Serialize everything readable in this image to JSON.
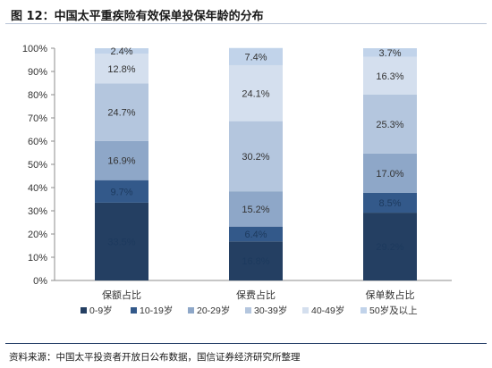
{
  "title": "图 12：中国太平重疾险有效保单投保年龄的分布",
  "source": "资料来源：中国太平投资者开放日公布数据，国信证券经济研究所整理",
  "chart_data": {
    "type": "bar",
    "stacked": true,
    "categories": [
      "保额占比",
      "保费占比",
      "保单数占比"
    ],
    "y_ticks": [
      "0%",
      "10%",
      "20%",
      "30%",
      "40%",
      "50%",
      "60%",
      "70%",
      "80%",
      "90%",
      "100%"
    ],
    "ylim": [
      0,
      100
    ],
    "grid": false,
    "legend_position": "bottom",
    "series": [
      {
        "name": "0-9岁",
        "color": "#243f62",
        "values": [
          33.5,
          16.8,
          29.2
        ],
        "labels": [
          "33.5%",
          "16.8%",
          "29.2%"
        ]
      },
      {
        "name": "10-19岁",
        "color": "#33598a",
        "values": [
          9.7,
          6.4,
          8.5
        ],
        "labels": [
          "9.7%",
          "6.4%",
          "8.5%"
        ]
      },
      {
        "name": "20-29岁",
        "color": "#8ea7c8",
        "values": [
          16.9,
          15.2,
          17.0
        ],
        "labels": [
          "16.9%",
          "15.2%",
          "17.0%"
        ]
      },
      {
        "name": "30-39岁",
        "color": "#b4c6de",
        "values": [
          24.7,
          30.2,
          25.3
        ],
        "labels": [
          "24.7%",
          "30.2%",
          "25.3%"
        ]
      },
      {
        "name": "40-49岁",
        "color": "#d4dfee",
        "values": [
          12.8,
          24.1,
          16.3
        ],
        "labels": [
          "12.8%",
          "24.1%",
          "16.3%"
        ]
      },
      {
        "name": "50岁及以上",
        "color": "#c1d3ea",
        "values": [
          2.4,
          7.4,
          3.7
        ],
        "labels": [
          "2.4%",
          "7.4%",
          "3.7%"
        ]
      }
    ]
  }
}
